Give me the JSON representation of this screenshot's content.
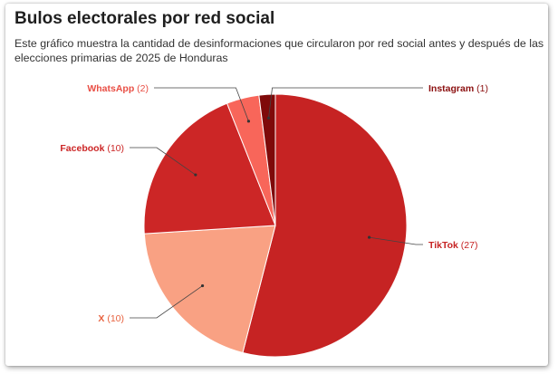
{
  "title": "Bulos electorales por red social",
  "subtitle": "Este gráfico muestra la cantidad de desinformaciones que circularon por red social antes y después de las elecciones primarias de 2025 de Honduras",
  "chart_data": {
    "type": "pie",
    "title": "Bulos electorales por red social",
    "subtitle": "Este gráfico muestra la cantidad de desinformaciones que circularon por red social antes y después de las elecciones primarias de 2025 de Honduras",
    "slices": [
      {
        "label": "TikTok",
        "value": 27,
        "display": "TikTok (27)",
        "color": "#c62323",
        "label_color": "#c62323"
      },
      {
        "label": "X",
        "value": 10,
        "display": "X (10)",
        "color": "#f9a183",
        "label_color": "#e8623f"
      },
      {
        "label": "Facebook",
        "value": 10,
        "display": "Facebook (10)",
        "color": "#cc2626",
        "label_color": "#cc2626"
      },
      {
        "label": "WhatsApp",
        "value": 2,
        "display": "WhatsApp (2)",
        "color": "#f8665a",
        "label_color": "#e94e44"
      },
      {
        "label": "Instagram",
        "value": 1,
        "display": "Instagram (1)",
        "color": "#7f0a0a",
        "label_color": "#8b0f0f"
      }
    ],
    "legend": "none"
  }
}
